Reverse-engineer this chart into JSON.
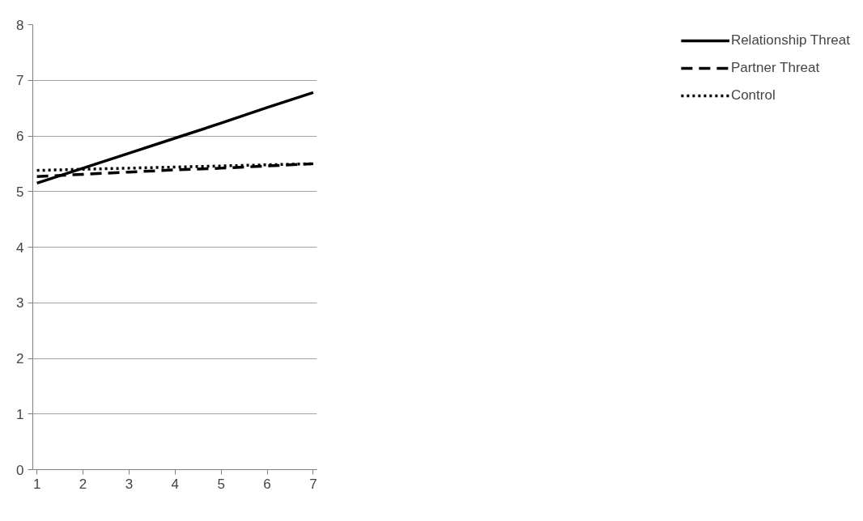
{
  "chart_data": {
    "type": "line",
    "x": [
      1,
      2,
      3,
      4,
      5,
      6,
      7
    ],
    "series": [
      {
        "name": "Relationship Threat",
        "color": "#000000",
        "line_style": "solid",
        "values": [
          5.15,
          5.42,
          5.69,
          5.96,
          6.23,
          6.51,
          6.78
        ]
      },
      {
        "name": "Partner Threat",
        "color": "#000000",
        "line_style": "dashed",
        "values": [
          5.27,
          5.31,
          5.35,
          5.39,
          5.42,
          5.46,
          5.5
        ]
      },
      {
        "name": "Control",
        "color": "#000000",
        "line_style": "dotted",
        "values": [
          5.38,
          5.4,
          5.42,
          5.44,
          5.46,
          5.48,
          5.5
        ]
      }
    ],
    "xlim": [
      0.91,
      7.08
    ],
    "xticks": [
      1,
      2,
      3,
      4,
      5,
      6,
      7
    ],
    "ylim": [
      0,
      8
    ],
    "yticks": [
      0,
      1,
      2,
      3,
      4,
      5,
      6,
      7,
      8
    ],
    "grid": "y",
    "legend": "right",
    "marker": "none"
  }
}
